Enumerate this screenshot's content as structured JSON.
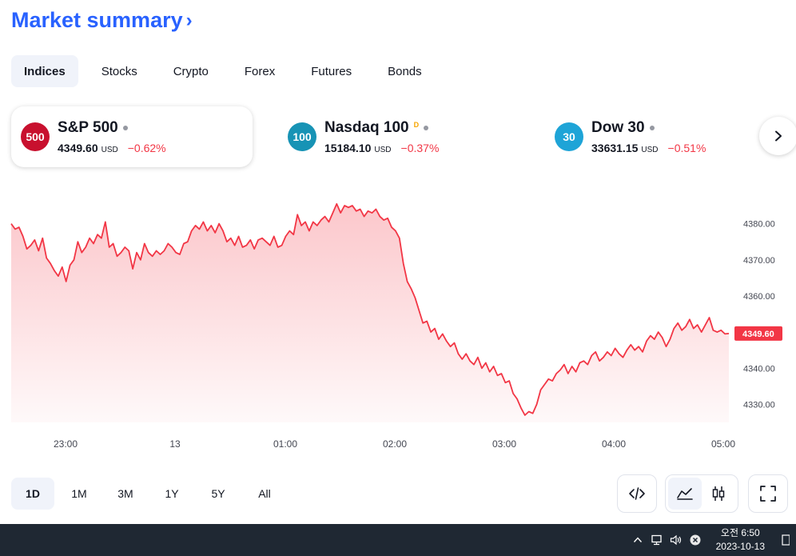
{
  "header": {
    "title": "Market summary",
    "chevron": "›"
  },
  "tabs": [
    {
      "label": "Indices",
      "active": true
    },
    {
      "label": "Stocks"
    },
    {
      "label": "Crypto"
    },
    {
      "label": "Forex"
    },
    {
      "label": "Futures"
    },
    {
      "label": "Bonds"
    }
  ],
  "cards": [
    {
      "badge": "500",
      "badge_color": "#c8102e",
      "name": "S&P 500",
      "price": "4349.60",
      "currency": "USD",
      "change": "−0.62%"
    },
    {
      "badge": "100",
      "badge_color": "#1793b5",
      "name": "Nasdaq 100",
      "sup": "D",
      "price": "15184.10",
      "currency": "USD",
      "change": "−0.37%"
    },
    {
      "badge": "30",
      "badge_color": "#1ea4d7",
      "name": "Dow 30",
      "price": "33631.15",
      "currency": "USD",
      "change": "−0.51%"
    }
  ],
  "colors": {
    "accent": "#2962ff",
    "negative": "#f23645"
  },
  "chart_data": {
    "type": "area",
    "series": [
      {
        "values": [
          4380.0,
          4378.5,
          4379.0,
          4376.5,
          4373.0,
          4374.0,
          4375.5,
          4372.5,
          4376.0,
          4370.5,
          4369.0,
          4367.0,
          4365.5,
          4368.0,
          4364.0,
          4368.5,
          4370.0,
          4375.0,
          4372.0,
          4373.5,
          4376.0,
          4374.5,
          4377.0,
          4376.0,
          4380.5,
          4373.5,
          4374.5,
          4371.0,
          4372.0,
          4373.5,
          4372.5,
          4367.5,
          4372.0,
          4370.0,
          4374.5,
          4372.0,
          4371.0,
          4372.5,
          4371.5,
          4372.5,
          4374.5,
          4373.5,
          4372.0,
          4371.5,
          4374.5,
          4375.0,
          4378.0,
          4379.5,
          4378.5,
          4380.5,
          4378.0,
          4379.5,
          4377.5,
          4380.0,
          4378.0,
          4375.0,
          4376.0,
          4374.0,
          4376.5,
          4373.5,
          4374.0,
          4375.5,
          4373.0,
          4375.5,
          4376.0,
          4375.0,
          4374.0,
          4376.5,
          4373.5,
          4374.0,
          4376.5,
          4378.0,
          4377.0,
          4382.5,
          4379.5,
          4380.5,
          4378.0,
          4380.5,
          4379.5,
          4381.0,
          4382.0,
          4380.5,
          4383.0,
          4385.5,
          4383.0,
          4385.0,
          4384.5,
          4385.0,
          4383.5,
          4384.0,
          4382.0,
          4383.5,
          4383.0,
          4384.0,
          4382.0,
          4381.0,
          4381.5,
          4379.0,
          4378.0,
          4376.0,
          4369.0,
          4364.0,
          4362.0,
          4359.5,
          4356.0,
          4352.5,
          4353.0,
          4350.0,
          4351.0,
          4348.0,
          4349.5,
          4347.5,
          4346.0,
          4347.0,
          4344.0,
          4342.5,
          4344.0,
          4342.0,
          4341.0,
          4343.0,
          4340.0,
          4341.5,
          4339.0,
          4340.5,
          4338.0,
          4338.5,
          4336.0,
          4336.5,
          4333.0,
          4331.5,
          4329.0,
          4327.0,
          4328.0,
          4327.5,
          4330.0,
          4334.0,
          4335.5,
          4337.0,
          4336.5,
          4338.5,
          4339.5,
          4341.0,
          4338.5,
          4340.5,
          4339.0,
          4341.5,
          4342.0,
          4341.0,
          4343.5,
          4344.5,
          4342.0,
          4343.0,
          4344.5,
          4343.5,
          4345.5,
          4344.0,
          4343.0,
          4345.0,
          4346.5,
          4345.0,
          4346.0,
          4344.5,
          4347.5,
          4349.0,
          4348.0,
          4350.0,
          4348.5,
          4346.0,
          4348.0,
          4351.0,
          4352.5,
          4350.5,
          4351.5,
          4353.5,
          4351.0,
          4352.0,
          4350.0,
          4352.0,
          4354.0,
          4350.5,
          4350.0,
          4350.5,
          4349.5,
          4349.6
        ]
      }
    ],
    "x_ticks": [
      "23:00",
      "13",
      "01:00",
      "02:00",
      "03:00",
      "04:00",
      "05:00"
    ],
    "y_ticks": [
      "4330.00",
      "4340.00",
      "4350.00",
      "4360.00",
      "4370.00",
      "4380.00"
    ],
    "ylim": [
      4325,
      4387
    ],
    "last_value_label": "4349.60",
    "line_color": "#f23645",
    "grid": false
  },
  "ranges": [
    {
      "label": "1D",
      "active": true
    },
    {
      "label": "1M"
    },
    {
      "label": "3M"
    },
    {
      "label": "1Y"
    },
    {
      "label": "5Y"
    },
    {
      "label": "All"
    }
  ],
  "tools": {
    "embed": "code-icon",
    "area": "area-chart-icon",
    "candles": "candlestick-icon",
    "fullscreen": "fullscreen-icon"
  },
  "taskbar": {
    "time": "오전 6:50",
    "date": "2023-10-13"
  }
}
